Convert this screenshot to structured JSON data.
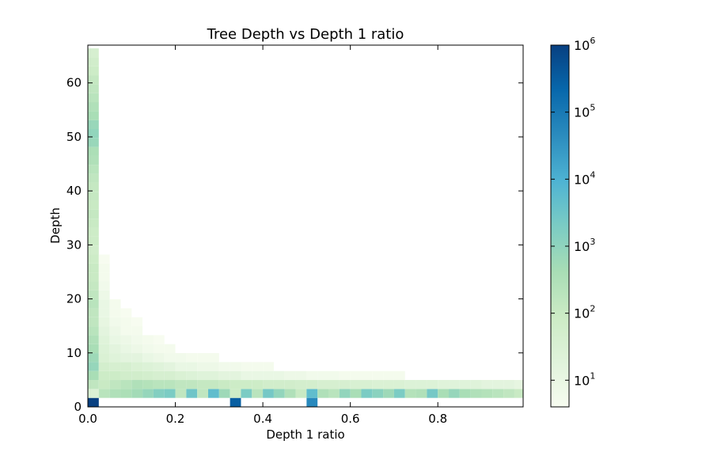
{
  "chart_data": {
    "type": "heatmap",
    "title": "Tree Depth vs Depth 1 ratio",
    "xlabel": "Depth 1 ratio",
    "ylabel": "Depth",
    "xlim": [
      0,
      0.995
    ],
    "ylim": [
      0,
      67
    ],
    "x_ticks": [
      0.0,
      0.2,
      0.4,
      0.6,
      0.8
    ],
    "x_tick_labels": [
      "0.0",
      "0.2",
      "0.4",
      "0.6",
      "0.8"
    ],
    "y_ticks": [
      0,
      10,
      20,
      30,
      40,
      50,
      60
    ],
    "y_tick_labels": [
      "0",
      "10",
      "20",
      "30",
      "40",
      "50",
      "60"
    ],
    "x_bin_width": 0.025,
    "y_bin_height": 1.66,
    "colorscale": "log",
    "colormap": [
      "#f7fcf0",
      "#e0f3db",
      "#ccebc5",
      "#a8ddb5",
      "#7bccc4",
      "#4eb3d3",
      "#2b8cbe",
      "#0868ac",
      "#084081"
    ],
    "colorbar_range": [
      4,
      1000000
    ],
    "colorbar_ticks": [
      1,
      2,
      3,
      4,
      5,
      6
    ],
    "colorbar_tick_labels": [
      {
        "base": "10",
        "exp": "1"
      },
      {
        "base": "10",
        "exp": "2"
      },
      {
        "base": "10",
        "exp": "3"
      },
      {
        "base": "10",
        "exp": "4"
      },
      {
        "base": "10",
        "exp": "5"
      },
      {
        "base": "10",
        "exp": "6"
      }
    ],
    "cells_note": "counts per bin; columns indexed by depth-1-ratio bin (0.025 wide), rows by depth bin",
    "cells": {
      "col0": [
        1000000,
        30,
        150,
        400,
        800,
        600,
        400,
        300,
        200,
        150,
        150,
        200,
        150,
        120,
        100,
        100,
        80,
        60,
        80,
        80,
        100,
        120,
        100,
        120,
        120,
        150,
        200,
        300,
        350,
        700,
        900,
        700,
        400,
        300,
        200,
        150,
        120,
        80,
        60,
        40
      ],
      "col1": [
        0,
        200,
        100,
        80,
        50,
        30,
        25,
        20,
        15,
        12,
        10,
        10,
        8,
        6,
        5,
        5,
        4
      ],
      "col2": [
        0,
        300,
        150,
        80,
        40,
        20,
        15,
        10,
        8,
        6,
        5,
        5
      ],
      "col3": [
        0,
        350,
        200,
        60,
        40,
        15,
        10,
        8,
        5,
        5,
        4
      ],
      "col4": [
        0,
        500,
        300,
        60,
        30,
        15,
        8,
        6,
        5,
        4
      ],
      "col5": [
        0,
        800,
        250,
        50,
        25,
        10,
        6,
        5
      ],
      "col6": [
        0,
        1500,
        200,
        40,
        20,
        8,
        5,
        4
      ],
      "col7": [
        0,
        2000,
        200,
        40,
        15,
        6,
        5
      ],
      "col8": [
        0,
        150,
        150,
        30,
        10,
        6
      ],
      "col9": [
        0,
        3000,
        150,
        25,
        10,
        5
      ],
      "col10": [
        0,
        150,
        120,
        20,
        8,
        5
      ],
      "col11": [
        0,
        5000,
        120,
        20,
        8,
        5
      ],
      "col12": [
        0,
        600,
        100,
        15,
        6
      ],
      "col13": [
        300000,
        80,
        80,
        15,
        6
      ],
      "col14": [
        0,
        2000,
        80,
        10,
        5
      ],
      "col15": [
        0,
        200,
        80,
        10,
        5
      ],
      "col16": [
        0,
        2500,
        60,
        10,
        5
      ],
      "col17": [
        0,
        900,
        60,
        10
      ],
      "col18": [
        0,
        300,
        60,
        8
      ],
      "col19": [
        0,
        100,
        50,
        8
      ],
      "col20": [
        50000,
        5000,
        50,
        6
      ],
      "col21": [
        0,
        300,
        40,
        6
      ],
      "col22": [
        0,
        200,
        40,
        6
      ],
      "col23": [
        0,
        900,
        40,
        5
      ],
      "col24": [
        0,
        400,
        35,
        5
      ],
      "col25": [
        0,
        2000,
        35,
        5
      ],
      "col26": [
        0,
        1200,
        30,
        5
      ],
      "col27": [
        0,
        600,
        30,
        5
      ],
      "col28": [
        0,
        2000,
        30,
        5
      ],
      "col29": [
        0,
        250,
        25
      ],
      "col30": [
        0,
        300,
        25
      ],
      "col31": [
        0,
        2500,
        25
      ],
      "col32": [
        0,
        400,
        20
      ],
      "col33": [
        0,
        800,
        20
      ],
      "col34": [
        0,
        400,
        20
      ],
      "col35": [
        0,
        300,
        20
      ],
      "col36": [
        0,
        250,
        15
      ],
      "col37": [
        0,
        200,
        15
      ],
      "col38": [
        0,
        150,
        15
      ],
      "col39": [
        0,
        100,
        12
      ]
    },
    "grid": false,
    "colorbar_position": "right"
  }
}
